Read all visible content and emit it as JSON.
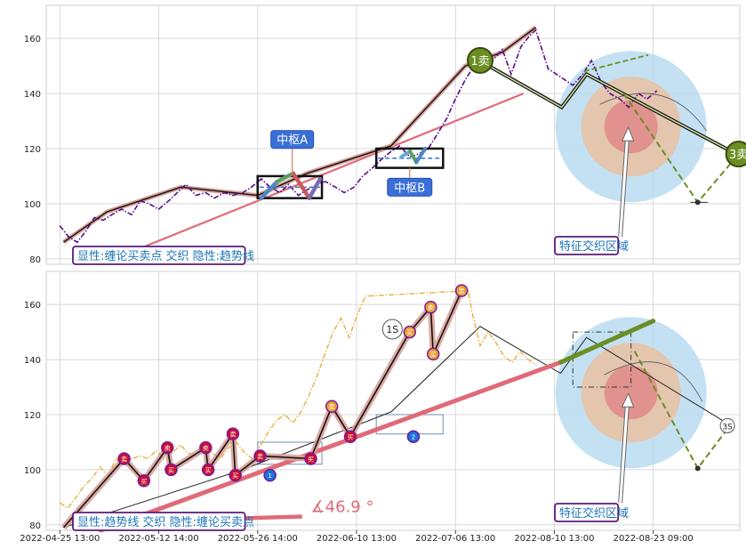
{
  "chart_data": [
    {
      "type": "line",
      "panel": "top",
      "ylim": [
        78,
        172
      ],
      "y_ticks": [
        80,
        100,
        120,
        140,
        160
      ],
      "grid": true,
      "price_series": [
        [
          0.0,
          92
        ],
        [
          0.7,
          88
        ],
        [
          1.4,
          86
        ],
        [
          2.1,
          90
        ],
        [
          2.8,
          95
        ],
        [
          3.5,
          94
        ],
        [
          4.2,
          96
        ],
        [
          5.0,
          98
        ],
        [
          5.8,
          96
        ],
        [
          6.5,
          101
        ],
        [
          7.2,
          100
        ],
        [
          8.0,
          98
        ],
        [
          8.8,
          101
        ],
        [
          9.5,
          104
        ],
        [
          10.2,
          107
        ],
        [
          11.0,
          103
        ],
        [
          11.8,
          104
        ],
        [
          12.5,
          102
        ],
        [
          13.3,
          104
        ],
        [
          14.0,
          103
        ],
        [
          14.8,
          104
        ],
        [
          15.5,
          106
        ],
        [
          16.3,
          109
        ],
        [
          17.0,
          106
        ],
        [
          17.8,
          104
        ],
        [
          18.5,
          107
        ],
        [
          19.3,
          103
        ],
        [
          20.0,
          105
        ],
        [
          20.8,
          107
        ],
        [
          21.5,
          108
        ],
        [
          22.3,
          106
        ],
        [
          23.0,
          104
        ],
        [
          23.8,
          106
        ],
        [
          24.5,
          110
        ],
        [
          25.3,
          113
        ],
        [
          26.0,
          116
        ],
        [
          26.8,
          119
        ],
        [
          27.5,
          121
        ],
        [
          28.3,
          117
        ],
        [
          29.0,
          118
        ],
        [
          29.8,
          120
        ],
        [
          30.5,
          125
        ],
        [
          31.3,
          131
        ],
        [
          32.0,
          138
        ],
        [
          32.8,
          145
        ],
        [
          33.5,
          150
        ],
        [
          34.3,
          149
        ],
        [
          35.0,
          152
        ],
        [
          35.8,
          156
        ],
        [
          36.5,
          147
        ],
        [
          37.3,
          157
        ],
        [
          38.0,
          161
        ],
        [
          38.5,
          163
        ],
        [
          39.0,
          156
        ],
        [
          39.5,
          149
        ],
        [
          40.5,
          146
        ],
        [
          41.5,
          143
        ],
        [
          42.3,
          147
        ],
        [
          43.0,
          152
        ],
        [
          43.8,
          144
        ],
        [
          44.5,
          140
        ],
        [
          45.3,
          138
        ],
        [
          46.0,
          135
        ],
        [
          46.8,
          140
        ],
        [
          47.5,
          138
        ],
        [
          48.3,
          141
        ]
      ],
      "bi_strokes": [
        [
          0.3,
          86
        ],
        [
          3.8,
          97
        ],
        [
          9.8,
          106
        ],
        [
          16.0,
          103
        ],
        [
          20.0,
          111
        ],
        [
          26.8,
          121
        ],
        [
          32.8,
          150
        ],
        [
          35.8,
          155
        ],
        [
          38.5,
          164
        ]
      ],
      "segment_strokes": [
        [
          0.3,
          86
        ],
        [
          26.8,
          121
        ],
        [
          38.5,
          164
        ]
      ],
      "trend_line": [
        [
          3.3,
          78
        ],
        [
          37.5,
          140
        ]
      ],
      "zhongshu": [
        {
          "label": "中枢A",
          "x": [
            16.0,
            21.2
          ],
          "y": [
            102,
            110
          ]
        },
        {
          "label": "中枢B",
          "x": [
            25.6,
            31.0
          ],
          "y": [
            113,
            120
          ]
        }
      ],
      "sell_markers": [
        {
          "label": "1卖",
          "x": 34.0,
          "y": 152
        },
        {
          "label": "3卖",
          "x": 54.9,
          "y": 118
        }
      ],
      "annotations": [
        "显性:缠论买卖点 交织 隐性:趋势线",
        "特征交织区域"
      ]
    },
    {
      "type": "line",
      "panel": "bottom",
      "ylim": [
        78,
        172
      ],
      "y_ticks": [
        80,
        100,
        120,
        140,
        160
      ],
      "grid": true,
      "x_tick_labels": [
        "2022-04-25 13:00",
        "2022-05-12 14:00",
        "2022-05-26 14:00",
        "2022-06-10 13:00",
        "2022-07-06 13:00",
        "2022-08-10 13:00",
        "2022-08-23 09:00"
      ],
      "x_ticks": [
        0,
        8,
        16,
        24,
        32,
        40,
        48
      ],
      "price_series": [
        [
          0.0,
          88
        ],
        [
          1.0,
          86
        ],
        [
          2.0,
          90
        ],
        [
          3.0,
          94
        ],
        [
          4.0,
          97
        ],
        [
          5.0,
          101
        ],
        [
          6.0,
          98
        ],
        [
          7.0,
          104
        ],
        [
          8.0,
          102
        ],
        [
          9.0,
          104
        ],
        [
          10.0,
          105
        ],
        [
          11.0,
          104
        ],
        [
          12.0,
          107
        ],
        [
          13.0,
          104
        ],
        [
          14.0,
          106
        ],
        [
          15.0,
          109
        ],
        [
          16.0,
          106
        ],
        [
          17.0,
          105
        ],
        [
          18.0,
          108
        ],
        [
          19.0,
          106
        ],
        [
          20.0,
          104
        ],
        [
          21.0,
          108
        ],
        [
          22.0,
          110
        ],
        [
          23.0,
          106
        ],
        [
          24.0,
          104
        ],
        [
          25.0,
          109
        ],
        [
          26.0,
          114
        ],
        [
          27.0,
          118
        ],
        [
          28.0,
          120
        ],
        [
          29.0,
          117
        ],
        [
          30.0,
          121
        ],
        [
          31.0,
          127
        ],
        [
          32.0,
          134
        ],
        [
          33.0,
          142
        ],
        [
          34.0,
          150
        ],
        [
          35.0,
          155
        ],
        [
          36.0,
          148
        ],
        [
          37.0,
          156
        ],
        [
          38.0,
          163
        ],
        [
          38.5,
          165
        ],
        [
          39.0,
          157
        ],
        [
          40.0,
          145
        ],
        [
          41.0,
          150
        ],
        [
          42.0,
          146
        ],
        [
          43.0,
          141
        ],
        [
          44.0,
          139
        ],
        [
          45.0,
          143
        ],
        [
          46.0,
          140
        ],
        [
          47.0,
          138
        ]
      ],
      "bi_strokes": [
        [
          0.3,
          79
        ],
        [
          4.2,
          104
        ],
        [
          5.2,
          96
        ],
        [
          6.8,
          108
        ],
        [
          7.2,
          100
        ],
        [
          10.8,
          108
        ],
        [
          11.0,
          100
        ],
        [
          13.8,
          113
        ],
        [
          14.2,
          98
        ],
        [
          16.2,
          105
        ],
        [
          18.8,
          104
        ],
        [
          22.0,
          123
        ],
        [
          23.5,
          112
        ],
        [
          28.0,
          150
        ],
        [
          30.0,
          159
        ],
        [
          30.2,
          142
        ],
        [
          32.5,
          165
        ]
      ],
      "segment_strokes": [
        [
          0.3,
          79
        ],
        [
          26.8,
          121
        ],
        [
          34.0,
          152
        ]
      ],
      "buy_points": [
        {
          "label": "1",
          "x": 14.8,
          "y": 98
        },
        {
          "label": "2",
          "x": 23.5,
          "y": 112
        }
      ],
      "sell_points": [
        {
          "label": "1S",
          "x": 27.5,
          "y": 151
        },
        {
          "label": "3S",
          "x": 46.0,
          "y": 116
        }
      ],
      "trend_line": [
        [
          3.3,
          78
        ],
        [
          40.5,
          154
        ]
      ],
      "trend_angle_label": "∡46.9 °",
      "annotations": [
        "显性:趋势线 交织 隐性:缠论买卖点",
        "特征交织区域"
      ]
    }
  ],
  "colors": {
    "price_top": "#5a0a8a",
    "price_bottom": "#e8b040",
    "trend": "#e06a78",
    "bi": "#111111",
    "bi_halo": "#d9a19a",
    "segment": "#f0c8b8",
    "zhongshu_box": "#111111",
    "label_fill": "#3a6fd8",
    "annotation_border": "#5a1a7a",
    "annotation_text": "#1c74b8",
    "olive": "#6b8e23",
    "circle_outer": "#b8dcf0",
    "circle_mid": "#e8c2a6",
    "circle_inner": "#e08888"
  }
}
